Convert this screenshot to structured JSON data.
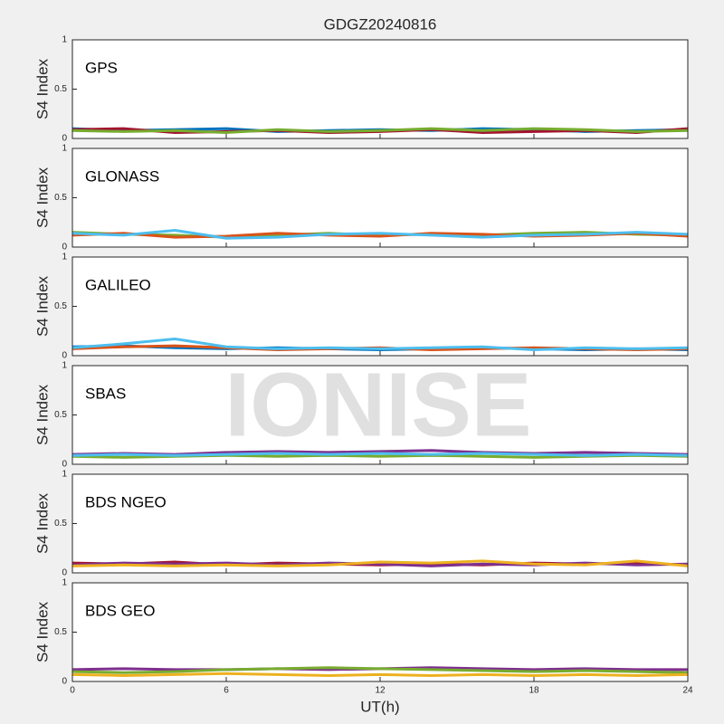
{
  "watermark": "IONISE",
  "chart_data": [
    {
      "type": "line",
      "title": "GDGZ20240816",
      "label": "GPS",
      "ylabel": "S4 Index",
      "x": [
        0,
        2,
        4,
        6,
        8,
        10,
        12,
        14,
        16,
        18,
        20,
        22,
        24
      ],
      "xlim": [
        0,
        24
      ],
      "xticks": [
        0,
        6,
        12,
        18,
        24
      ],
      "ylim": [
        0,
        1
      ],
      "yticks": [
        0,
        0.5,
        1
      ],
      "series": [
        {
          "color": "#0072BD",
          "values": [
            0.1,
            0.08,
            0.09,
            0.1,
            0.07,
            0.08,
            0.09,
            0.08,
            0.1,
            0.09,
            0.07,
            0.08,
            0.09
          ]
        },
        {
          "color": "#A2142F",
          "values": [
            0.09,
            0.1,
            0.06,
            0.07,
            0.08,
            0.06,
            0.07,
            0.09,
            0.06,
            0.07,
            0.08,
            0.06,
            0.1
          ]
        },
        {
          "color": "#77AC30",
          "values": [
            0.08,
            0.07,
            0.08,
            0.06,
            0.09,
            0.07,
            0.08,
            0.1,
            0.08,
            0.1,
            0.09,
            0.07,
            0.08
          ]
        }
      ]
    },
    {
      "type": "line",
      "label": "GLONASS",
      "ylabel": "S4 Index",
      "x": [
        0,
        2,
        4,
        6,
        8,
        10,
        12,
        14,
        16,
        18,
        20,
        22,
        24
      ],
      "xlim": [
        0,
        24
      ],
      "xticks": [
        0,
        6,
        12,
        18,
        24
      ],
      "ylim": [
        0,
        1
      ],
      "yticks": [
        0,
        0.5,
        1
      ],
      "series": [
        {
          "color": "#77AC30",
          "values": [
            0.15,
            0.13,
            0.12,
            0.1,
            0.12,
            0.14,
            0.12,
            0.13,
            0.12,
            0.14,
            0.15,
            0.13,
            0.12
          ]
        },
        {
          "color": "#D95319",
          "values": [
            0.12,
            0.14,
            0.1,
            0.11,
            0.14,
            0.12,
            0.11,
            0.14,
            0.13,
            0.11,
            0.12,
            0.14,
            0.11
          ]
        },
        {
          "color": "#4DBEEE",
          "values": [
            0.14,
            0.12,
            0.17,
            0.09,
            0.1,
            0.13,
            0.14,
            0.12,
            0.1,
            0.12,
            0.13,
            0.15,
            0.13
          ]
        }
      ]
    },
    {
      "type": "line",
      "label": "GALILEO",
      "ylabel": "S4 Index",
      "x": [
        0,
        2,
        4,
        6,
        8,
        10,
        12,
        14,
        16,
        18,
        20,
        22,
        24
      ],
      "xlim": [
        0,
        24
      ],
      "xticks": [
        0,
        6,
        12,
        18,
        24
      ],
      "ylim": [
        0,
        1
      ],
      "yticks": [
        0,
        0.5,
        1
      ],
      "series": [
        {
          "color": "#0072BD",
          "values": [
            0.09,
            0.1,
            0.08,
            0.07,
            0.08,
            0.07,
            0.06,
            0.07,
            0.08,
            0.07,
            0.06,
            0.07,
            0.06
          ]
        },
        {
          "color": "#D95319",
          "values": [
            0.07,
            0.09,
            0.1,
            0.08,
            0.06,
            0.07,
            0.08,
            0.06,
            0.07,
            0.08,
            0.07,
            0.06,
            0.07
          ]
        },
        {
          "color": "#4DBEEE",
          "values": [
            0.08,
            0.12,
            0.17,
            0.09,
            0.07,
            0.08,
            0.07,
            0.08,
            0.09,
            0.06,
            0.08,
            0.07,
            0.08
          ]
        }
      ]
    },
    {
      "type": "line",
      "label": "SBAS",
      "ylabel": "S4 Index",
      "x": [
        0,
        2,
        4,
        6,
        8,
        10,
        12,
        14,
        16,
        18,
        20,
        22,
        24
      ],
      "xlim": [
        0,
        24
      ],
      "xticks": [
        0,
        6,
        12,
        18,
        24
      ],
      "ylim": [
        0,
        1
      ],
      "yticks": [
        0,
        0.5,
        1
      ],
      "series": [
        {
          "color": "#7E2F8E",
          "values": [
            0.1,
            0.11,
            0.1,
            0.12,
            0.13,
            0.12,
            0.13,
            0.14,
            0.12,
            0.11,
            0.12,
            0.11,
            0.1
          ]
        },
        {
          "color": "#77AC30",
          "values": [
            0.08,
            0.07,
            0.08,
            0.09,
            0.08,
            0.09,
            0.08,
            0.09,
            0.08,
            0.07,
            0.08,
            0.09,
            0.08
          ]
        },
        {
          "color": "#4DBEEE",
          "values": [
            0.09,
            0.1,
            0.09,
            0.1,
            0.11,
            0.1,
            0.11,
            0.1,
            0.11,
            0.1,
            0.09,
            0.1,
            0.09
          ]
        }
      ]
    },
    {
      "type": "line",
      "label": "BDS NGEO",
      "ylabel": "S4 Index",
      "x": [
        0,
        2,
        4,
        6,
        8,
        10,
        12,
        14,
        16,
        18,
        20,
        22,
        24
      ],
      "xlim": [
        0,
        24
      ],
      "xticks": [
        0,
        6,
        12,
        18,
        24
      ],
      "ylim": [
        0,
        1
      ],
      "yticks": [
        0,
        0.5,
        1
      ],
      "series": [
        {
          "color": "#A2142F",
          "values": [
            0.1,
            0.09,
            0.11,
            0.08,
            0.1,
            0.09,
            0.08,
            0.09,
            0.08,
            0.1,
            0.09,
            0.1,
            0.08
          ]
        },
        {
          "color": "#7E2F8E",
          "values": [
            0.08,
            0.1,
            0.09,
            0.1,
            0.08,
            0.1,
            0.09,
            0.07,
            0.09,
            0.08,
            0.1,
            0.08,
            0.09
          ]
        },
        {
          "color": "#EDB120",
          "values": [
            0.07,
            0.08,
            0.07,
            0.08,
            0.07,
            0.08,
            0.11,
            0.1,
            0.12,
            0.09,
            0.08,
            0.12,
            0.07
          ]
        }
      ]
    },
    {
      "type": "line",
      "label": "BDS GEO",
      "ylabel": "S4 Index",
      "xlabel": "UT(h)",
      "x": [
        0,
        2,
        4,
        6,
        8,
        10,
        12,
        14,
        16,
        18,
        20,
        22,
        24
      ],
      "xlim": [
        0,
        24
      ],
      "xticks": [
        0,
        6,
        12,
        18,
        24
      ],
      "ylim": [
        0,
        1
      ],
      "yticks": [
        0,
        0.5,
        1
      ],
      "series": [
        {
          "color": "#7E2F8E",
          "values": [
            0.12,
            0.13,
            0.12,
            0.12,
            0.13,
            0.12,
            0.13,
            0.14,
            0.13,
            0.12,
            0.13,
            0.12,
            0.12
          ]
        },
        {
          "color": "#77AC30",
          "values": [
            0.1,
            0.09,
            0.1,
            0.12,
            0.13,
            0.14,
            0.13,
            0.12,
            0.11,
            0.1,
            0.11,
            0.1,
            0.09
          ]
        },
        {
          "color": "#EDB120",
          "values": [
            0.07,
            0.06,
            0.07,
            0.08,
            0.07,
            0.06,
            0.07,
            0.06,
            0.07,
            0.06,
            0.07,
            0.06,
            0.07
          ]
        }
      ]
    }
  ]
}
